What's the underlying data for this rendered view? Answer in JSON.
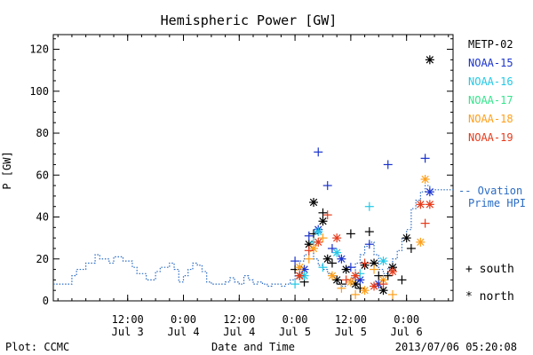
{
  "chart_data": {
    "type": "scatter",
    "title": "Hemispheric Power [GW]",
    "ylabel": "P [GW]",
    "xlabel": "Date and Time",
    "footer_left": "Plot: CCMC",
    "footer_right": "2013/07/06 05:20:08",
    "ylim": [
      0,
      127
    ],
    "yticks": [
      0,
      20,
      40,
      60,
      80,
      100,
      120
    ],
    "xlim": [
      "2013-07-02 20:00",
      "2013-07-06 10:00"
    ],
    "xticks": [
      {
        "time": "2013-07-03 12:00",
        "line1": "12:00",
        "line2": "Jul 3"
      },
      {
        "time": "2013-07-04 00:00",
        "line1": "0:00",
        "line2": "Jul 4"
      },
      {
        "time": "2013-07-04 12:00",
        "line1": "12:00",
        "line2": "Jul 4"
      },
      {
        "time": "2013-07-05 00:00",
        "line1": "0:00",
        "line2": "Jul 5"
      },
      {
        "time": "2013-07-05 12:00",
        "line1": "12:00",
        "line2": "Jul 5"
      },
      {
        "time": "2013-07-06 00:00",
        "line1": "0:00",
        "line2": "Jul 6"
      }
    ],
    "legend_position": "right",
    "satellites": [
      {
        "name": "METP-02",
        "color": "#000000"
      },
      {
        "name": "NOAA-15",
        "color": "#1a33cc"
      },
      {
        "name": "NOAA-16",
        "color": "#22c8e6"
      },
      {
        "name": "NOAA-17",
        "color": "#33e68c"
      },
      {
        "name": "NOAA-18",
        "color": "#ff9f1a"
      },
      {
        "name": "NOAA-19",
        "color": "#e63a1a"
      }
    ],
    "ovation": {
      "label_line1": "-- Ovation",
      "label_line2": "Prime HPI",
      "color": "#2b6cc4",
      "series": [
        [
          "2013-07-02 20:00",
          8
        ],
        [
          "2013-07-03 00:00",
          12
        ],
        [
          "2013-07-03 01:00",
          15
        ],
        [
          "2013-07-03 03:00",
          18
        ],
        [
          "2013-07-03 05:00",
          22
        ],
        [
          "2013-07-03 06:00",
          20
        ],
        [
          "2013-07-03 08:00",
          18
        ],
        [
          "2013-07-03 09:00",
          21
        ],
        [
          "2013-07-03 11:00",
          19
        ],
        [
          "2013-07-03 13:00",
          16
        ],
        [
          "2013-07-03 14:00",
          13
        ],
        [
          "2013-07-03 16:00",
          10
        ],
        [
          "2013-07-03 18:00",
          14
        ],
        [
          "2013-07-03 19:00",
          16
        ],
        [
          "2013-07-03 21:00",
          18
        ],
        [
          "2013-07-03 22:00",
          15
        ],
        [
          "2013-07-03 23:00",
          9
        ],
        [
          "2013-07-04 00:00",
          12
        ],
        [
          "2013-07-04 01:00",
          15
        ],
        [
          "2013-07-04 02:00",
          18
        ],
        [
          "2013-07-04 03:00",
          17
        ],
        [
          "2013-07-04 04:00",
          14
        ],
        [
          "2013-07-04 05:00",
          9
        ],
        [
          "2013-07-04 06:00",
          8
        ],
        [
          "2013-07-04 09:00",
          9
        ],
        [
          "2013-07-04 10:00",
          11
        ],
        [
          "2013-07-04 11:00",
          9
        ],
        [
          "2013-07-04 12:00",
          8
        ],
        [
          "2013-07-04 13:00",
          12
        ],
        [
          "2013-07-04 14:00",
          10
        ],
        [
          "2013-07-04 15:00",
          8
        ],
        [
          "2013-07-04 16:00",
          9
        ],
        [
          "2013-07-04 17:00",
          8
        ],
        [
          "2013-07-04 18:00",
          7
        ],
        [
          "2013-07-04 19:00",
          8
        ],
        [
          "2013-07-04 21:00",
          7
        ],
        [
          "2013-07-04 22:00",
          8
        ],
        [
          "2013-07-04 23:00",
          10
        ],
        [
          "2013-07-05 00:00",
          16
        ],
        [
          "2013-07-05 01:00",
          19
        ],
        [
          "2013-07-05 02:00",
          22
        ],
        [
          "2013-07-05 03:00",
          24
        ],
        [
          "2013-07-05 04:00",
          20
        ],
        [
          "2013-07-05 05:00",
          17
        ],
        [
          "2013-07-05 06:00",
          15
        ],
        [
          "2013-07-05 07:00",
          13
        ],
        [
          "2013-07-05 08:00",
          12
        ],
        [
          "2013-07-05 09:00",
          8
        ],
        [
          "2013-07-05 10:00",
          7
        ],
        [
          "2013-07-05 11:00",
          10
        ],
        [
          "2013-07-05 12:00",
          11
        ],
        [
          "2013-07-05 13:00",
          18
        ],
        [
          "2013-07-05 14:00",
          22
        ],
        [
          "2013-07-05 15:00",
          26
        ],
        [
          "2013-07-05 16:00",
          28
        ],
        [
          "2013-07-05 17:00",
          22
        ],
        [
          "2013-07-05 18:00",
          15
        ],
        [
          "2013-07-05 19:00",
          13
        ],
        [
          "2013-07-05 20:00",
          16
        ],
        [
          "2013-07-05 21:00",
          20
        ],
        [
          "2013-07-05 22:00",
          24
        ],
        [
          "2013-07-05 23:00",
          30
        ],
        [
          "2013-07-06 00:00",
          34
        ],
        [
          "2013-07-06 01:00",
          44
        ],
        [
          "2013-07-06 02:00",
          48
        ],
        [
          "2013-07-06 03:00",
          52
        ],
        [
          "2013-07-06 04:00",
          55
        ],
        [
          "2013-07-06 05:00",
          53
        ]
      ]
    },
    "symbol_legend": [
      {
        "symbol": "+",
        "label": "south"
      },
      {
        "symbol": "*",
        "label": "north"
      }
    ],
    "points": [
      {
        "sat": "METP-02",
        "hemi": "north",
        "t": "2013-07-06 05:00",
        "v": 115
      },
      {
        "sat": "METP-02",
        "hemi": "south",
        "t": "2013-07-05 00:00",
        "v": 15
      },
      {
        "sat": "METP-02",
        "hemi": "north",
        "t": "2013-07-05 01:00",
        "v": 12
      },
      {
        "sat": "METP-02",
        "hemi": "south",
        "t": "2013-07-05 02:00",
        "v": 9
      },
      {
        "sat": "METP-02",
        "hemi": "north",
        "t": "2013-07-05 03:00",
        "v": 27
      },
      {
        "sat": "METP-02",
        "hemi": "south",
        "t": "2013-07-05 04:00",
        "v": 32
      },
      {
        "sat": "METP-02",
        "hemi": "north",
        "t": "2013-07-05 04:00",
        "v": 47
      },
      {
        "sat": "METP-02",
        "hemi": "north",
        "t": "2013-07-05 06:00",
        "v": 38
      },
      {
        "sat": "METP-02",
        "hemi": "south",
        "t": "2013-07-05 06:00",
        "v": 42
      },
      {
        "sat": "METP-02",
        "hemi": "north",
        "t": "2013-07-05 07:00",
        "v": 20
      },
      {
        "sat": "METP-02",
        "hemi": "south",
        "t": "2013-07-05 08:00",
        "v": 18
      },
      {
        "sat": "METP-02",
        "hemi": "north",
        "t": "2013-07-05 09:00",
        "v": 10
      },
      {
        "sat": "METP-02",
        "hemi": "south",
        "t": "2013-07-05 10:00",
        "v": 8
      },
      {
        "sat": "METP-02",
        "hemi": "north",
        "t": "2013-07-05 11:00",
        "v": 15
      },
      {
        "sat": "METP-02",
        "hemi": "south",
        "t": "2013-07-05 12:00",
        "v": 32
      },
      {
        "sat": "METP-02",
        "hemi": "north",
        "t": "2013-07-05 13:00",
        "v": 8
      },
      {
        "sat": "METP-02",
        "hemi": "south",
        "t": "2013-07-05 14:00",
        "v": 6
      },
      {
        "sat": "METP-02",
        "hemi": "north",
        "t": "2013-07-05 15:00",
        "v": 17
      },
      {
        "sat": "METP-02",
        "hemi": "south",
        "t": "2013-07-05 16:00",
        "v": 33
      },
      {
        "sat": "METP-02",
        "hemi": "north",
        "t": "2013-07-05 17:00",
        "v": 18
      },
      {
        "sat": "METP-02",
        "hemi": "south",
        "t": "2013-07-05 18:00",
        "v": 12
      },
      {
        "sat": "METP-02",
        "hemi": "north",
        "t": "2013-07-05 19:00",
        "v": 5
      },
      {
        "sat": "METP-02",
        "hemi": "south",
        "t": "2013-07-05 20:00",
        "v": 12
      },
      {
        "sat": "METP-02",
        "hemi": "north",
        "t": "2013-07-05 21:00",
        "v": 16
      },
      {
        "sat": "METP-02",
        "hemi": "south",
        "t": "2013-07-05 23:00",
        "v": 10
      },
      {
        "sat": "METP-02",
        "hemi": "north",
        "t": "2013-07-06 00:00",
        "v": 30
      },
      {
        "sat": "METP-02",
        "hemi": "south",
        "t": "2013-07-06 01:00",
        "v": 25
      },
      {
        "sat": "NOAA-15",
        "hemi": "south",
        "t": "2013-07-05 05:00",
        "v": 71
      },
      {
        "sat": "NOAA-15",
        "hemi": "south",
        "t": "2013-07-05 07:00",
        "v": 55
      },
      {
        "sat": "NOAA-15",
        "hemi": "south",
        "t": "2013-07-05 20:00",
        "v": 65
      },
      {
        "sat": "NOAA-15",
        "hemi": "south",
        "t": "2013-07-06 04:00",
        "v": 68
      },
      {
        "sat": "NOAA-15",
        "hemi": "north",
        "t": "2013-07-06 05:00",
        "v": 52
      },
      {
        "sat": "NOAA-15",
        "hemi": "south",
        "t": "2013-07-05 00:00",
        "v": 19
      },
      {
        "sat": "NOAA-15",
        "hemi": "north",
        "t": "2013-07-05 02:00",
        "v": 15
      },
      {
        "sat": "NOAA-15",
        "hemi": "south",
        "t": "2013-07-05 03:00",
        "v": 31
      },
      {
        "sat": "NOAA-15",
        "hemi": "north",
        "t": "2013-07-05 05:00",
        "v": 34
      },
      {
        "sat": "NOAA-15",
        "hemi": "south",
        "t": "2013-07-05 08:00",
        "v": 25
      },
      {
        "sat": "NOAA-15",
        "hemi": "north",
        "t": "2013-07-05 10:00",
        "v": 20
      },
      {
        "sat": "NOAA-15",
        "hemi": "south",
        "t": "2013-07-05 12:00",
        "v": 16
      },
      {
        "sat": "NOAA-15",
        "hemi": "north",
        "t": "2013-07-05 14:00",
        "v": 10
      },
      {
        "sat": "NOAA-15",
        "hemi": "south",
        "t": "2013-07-05 16:00",
        "v": 27
      },
      {
        "sat": "NOAA-15",
        "hemi": "north",
        "t": "2013-07-05 18:00",
        "v": 8
      },
      {
        "sat": "NOAA-16",
        "hemi": "south",
        "t": "2013-07-05 00:00",
        "v": 8
      },
      {
        "sat": "NOAA-16",
        "hemi": "north",
        "t": "2013-07-05 02:00",
        "v": 12
      },
      {
        "sat": "NOAA-16",
        "hemi": "south",
        "t": "2013-07-05 04:00",
        "v": 28
      },
      {
        "sat": "NOAA-16",
        "hemi": "north",
        "t": "2013-07-05 05:00",
        "v": 33
      },
      {
        "sat": "NOAA-16",
        "hemi": "south",
        "t": "2013-07-05 06:00",
        "v": 16
      },
      {
        "sat": "NOAA-16",
        "hemi": "north",
        "t": "2013-07-05 09:00",
        "v": 23
      },
      {
        "sat": "NOAA-16",
        "hemi": "south",
        "t": "2013-07-05 14:00",
        "v": 13
      },
      {
        "sat": "NOAA-16",
        "hemi": "south",
        "t": "2013-07-05 16:00",
        "v": 45
      },
      {
        "sat": "NOAA-16",
        "hemi": "north",
        "t": "2013-07-05 19:00",
        "v": 19
      },
      {
        "sat": "NOAA-18",
        "hemi": "north",
        "t": "2013-07-05 01:00",
        "v": 16
      },
      {
        "sat": "NOAA-18",
        "hemi": "south",
        "t": "2013-07-05 03:00",
        "v": 20
      },
      {
        "sat": "NOAA-18",
        "hemi": "north",
        "t": "2013-07-05 04:00",
        "v": 25
      },
      {
        "sat": "NOAA-18",
        "hemi": "south",
        "t": "2013-07-05 06:00",
        "v": 30
      },
      {
        "sat": "NOAA-18",
        "hemi": "north",
        "t": "2013-07-05 08:00",
        "v": 12
      },
      {
        "sat": "NOAA-18",
        "hemi": "south",
        "t": "2013-07-05 10:00",
        "v": 6
      },
      {
        "sat": "NOAA-18",
        "hemi": "north",
        "t": "2013-07-05 12:00",
        "v": 9
      },
      {
        "sat": "NOAA-18",
        "hemi": "south",
        "t": "2013-07-05 13:00",
        "v": 3
      },
      {
        "sat": "NOAA-18",
        "hemi": "north",
        "t": "2013-07-05 15:00",
        "v": 5
      },
      {
        "sat": "NOAA-18",
        "hemi": "south",
        "t": "2013-07-05 17:00",
        "v": 15
      },
      {
        "sat": "NOAA-18",
        "hemi": "north",
        "t": "2013-07-05 19:00",
        "v": 10
      },
      {
        "sat": "NOAA-18",
        "hemi": "south",
        "t": "2013-07-05 21:00",
        "v": 3
      },
      {
        "sat": "NOAA-18",
        "hemi": "north",
        "t": "2013-07-06 03:00",
        "v": 28
      },
      {
        "sat": "NOAA-18",
        "hemi": "north",
        "t": "2013-07-06 04:00",
        "v": 58
      },
      {
        "sat": "NOAA-19",
        "hemi": "north",
        "t": "2013-07-05 01:00",
        "v": 12
      },
      {
        "sat": "NOAA-19",
        "hemi": "south",
        "t": "2013-07-05 03:00",
        "v": 24
      },
      {
        "sat": "NOAA-19",
        "hemi": "north",
        "t": "2013-07-05 05:00",
        "v": 28
      },
      {
        "sat": "NOAA-19",
        "hemi": "south",
        "t": "2013-07-05 07:00",
        "v": 41
      },
      {
        "sat": "NOAA-19",
        "hemi": "north",
        "t": "2013-07-05 09:00",
        "v": 30
      },
      {
        "sat": "NOAA-19",
        "hemi": "south",
        "t": "2013-07-05 11:00",
        "v": 10
      },
      {
        "sat": "NOAA-19",
        "hemi": "north",
        "t": "2013-07-05 13:00",
        "v": 12
      },
      {
        "sat": "NOAA-19",
        "hemi": "south",
        "t": "2013-07-05 15:00",
        "v": 18
      },
      {
        "sat": "NOAA-19",
        "hemi": "north",
        "t": "2013-07-05 17:00",
        "v": 7
      },
      {
        "sat": "NOAA-19",
        "hemi": "south",
        "t": "2013-07-05 19:00",
        "v": 8
      },
      {
        "sat": "NOAA-19",
        "hemi": "north",
        "t": "2013-07-05 21:00",
        "v": 14
      },
      {
        "sat": "NOAA-19",
        "hemi": "north",
        "t": "2013-07-06 03:00",
        "v": 46
      },
      {
        "sat": "NOAA-19",
        "hemi": "south",
        "t": "2013-07-06 04:00",
        "v": 37
      },
      {
        "sat": "NOAA-19",
        "hemi": "north",
        "t": "2013-07-06 05:00",
        "v": 46
      }
    ]
  }
}
